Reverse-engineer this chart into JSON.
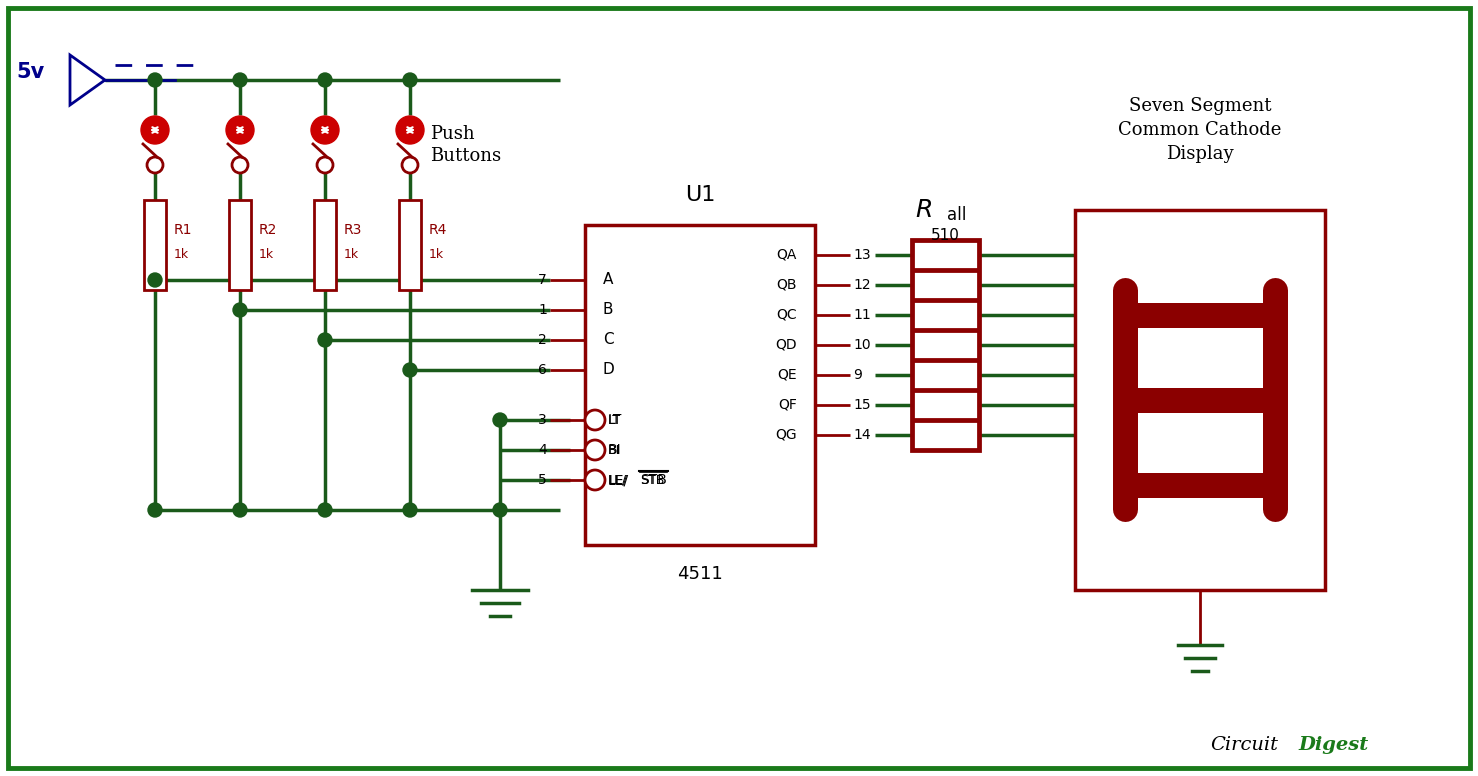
{
  "bg_color": "#ffffff",
  "border_color": "#1a7a1a",
  "wire_color": "#1a5a1a",
  "dark_red": "#8b0000",
  "red": "#cc0000",
  "blue": "#00008b",
  "black": "#000000",
  "node_color": "#1a5a1a",
  "vcc_label": "5v",
  "r_labels": [
    "R1",
    "R2",
    "R3",
    "R4"
  ],
  "r_values": [
    "1k",
    "1k",
    "1k",
    "1k"
  ],
  "ic_label": "U1",
  "ic_type": "4511",
  "ic_inputs": [
    "A",
    "B",
    "C",
    "D"
  ],
  "ic_inputs_pins": [
    "7",
    "1",
    "2",
    "6"
  ],
  "ic_ctrl": [
    "LT",
    "BI",
    "LE/STB"
  ],
  "ic_ctrl_pins": [
    "3",
    "4",
    "5"
  ],
  "ic_outputs": [
    "QA",
    "QB",
    "QC",
    "QD",
    "QE",
    "QF",
    "QG"
  ],
  "ic_output_pins": [
    "13",
    "12",
    "11",
    "10",
    "9",
    "15",
    "14"
  ],
  "r_all_value": "510",
  "seg_label": "Seven Segment\nCommon Cathode\nDisplay",
  "push_label": "Push\nButtons",
  "circuit_digest": "CircuitDigest"
}
